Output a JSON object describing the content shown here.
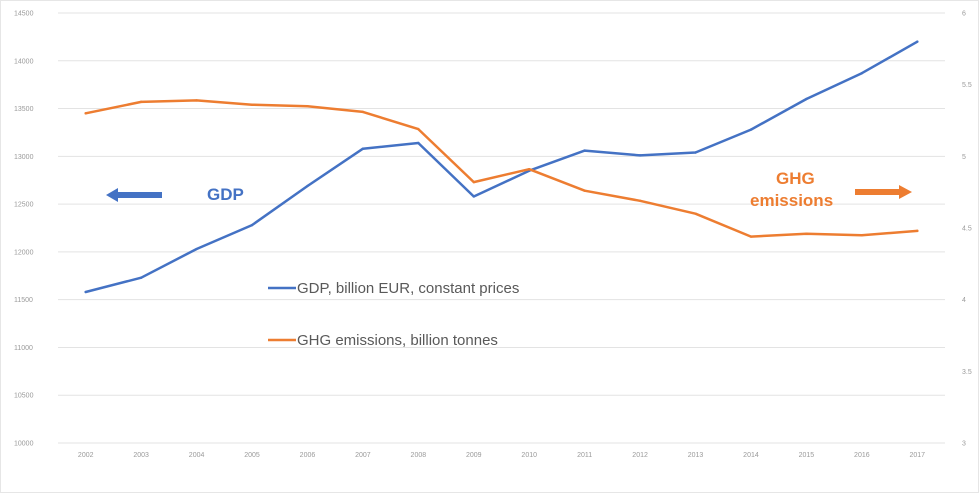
{
  "chart_data": {
    "type": "line",
    "title": "",
    "x": [
      "2002",
      "2003",
      "2004",
      "2005",
      "2006",
      "2007",
      "2008",
      "2009",
      "2010",
      "2011",
      "2012",
      "2013",
      "2014",
      "2015",
      "2016",
      "2017"
    ],
    "y_left": {
      "ticks": [
        "14500",
        "14000",
        "13500",
        "13000",
        "12500",
        "12000",
        "11500",
        "11000",
        "10500",
        "10000"
      ],
      "min": 10000,
      "max": 14500
    },
    "y_right": {
      "ticks": [
        "6",
        "5.5",
        "5",
        "4.5",
        "4",
        "3.5",
        "3"
      ],
      "min": 3,
      "max": 6
    },
    "series": [
      {
        "name": "GDP, billion EUR, constant prices",
        "axis": "left",
        "color": "#4472c4",
        "values": [
          11580,
          11730,
          12030,
          12280,
          12690,
          13080,
          13140,
          12580,
          12850,
          13060,
          13010,
          13040,
          13280,
          13600,
          13870,
          14200
        ]
      },
      {
        "name": "GHG emissions, billion tonnes",
        "axis": "right",
        "color": "#ed7d31",
        "values": [
          5.3,
          5.38,
          5.39,
          5.36,
          5.35,
          5.31,
          5.19,
          4.82,
          4.91,
          4.76,
          4.69,
          4.6,
          4.44,
          4.46,
          4.45,
          4.48
        ]
      }
    ],
    "annotations": {
      "gdp": "GDP",
      "ghg_line1": "GHG",
      "ghg_line2": "emissions"
    },
    "grid": true,
    "legend_position": "center"
  }
}
